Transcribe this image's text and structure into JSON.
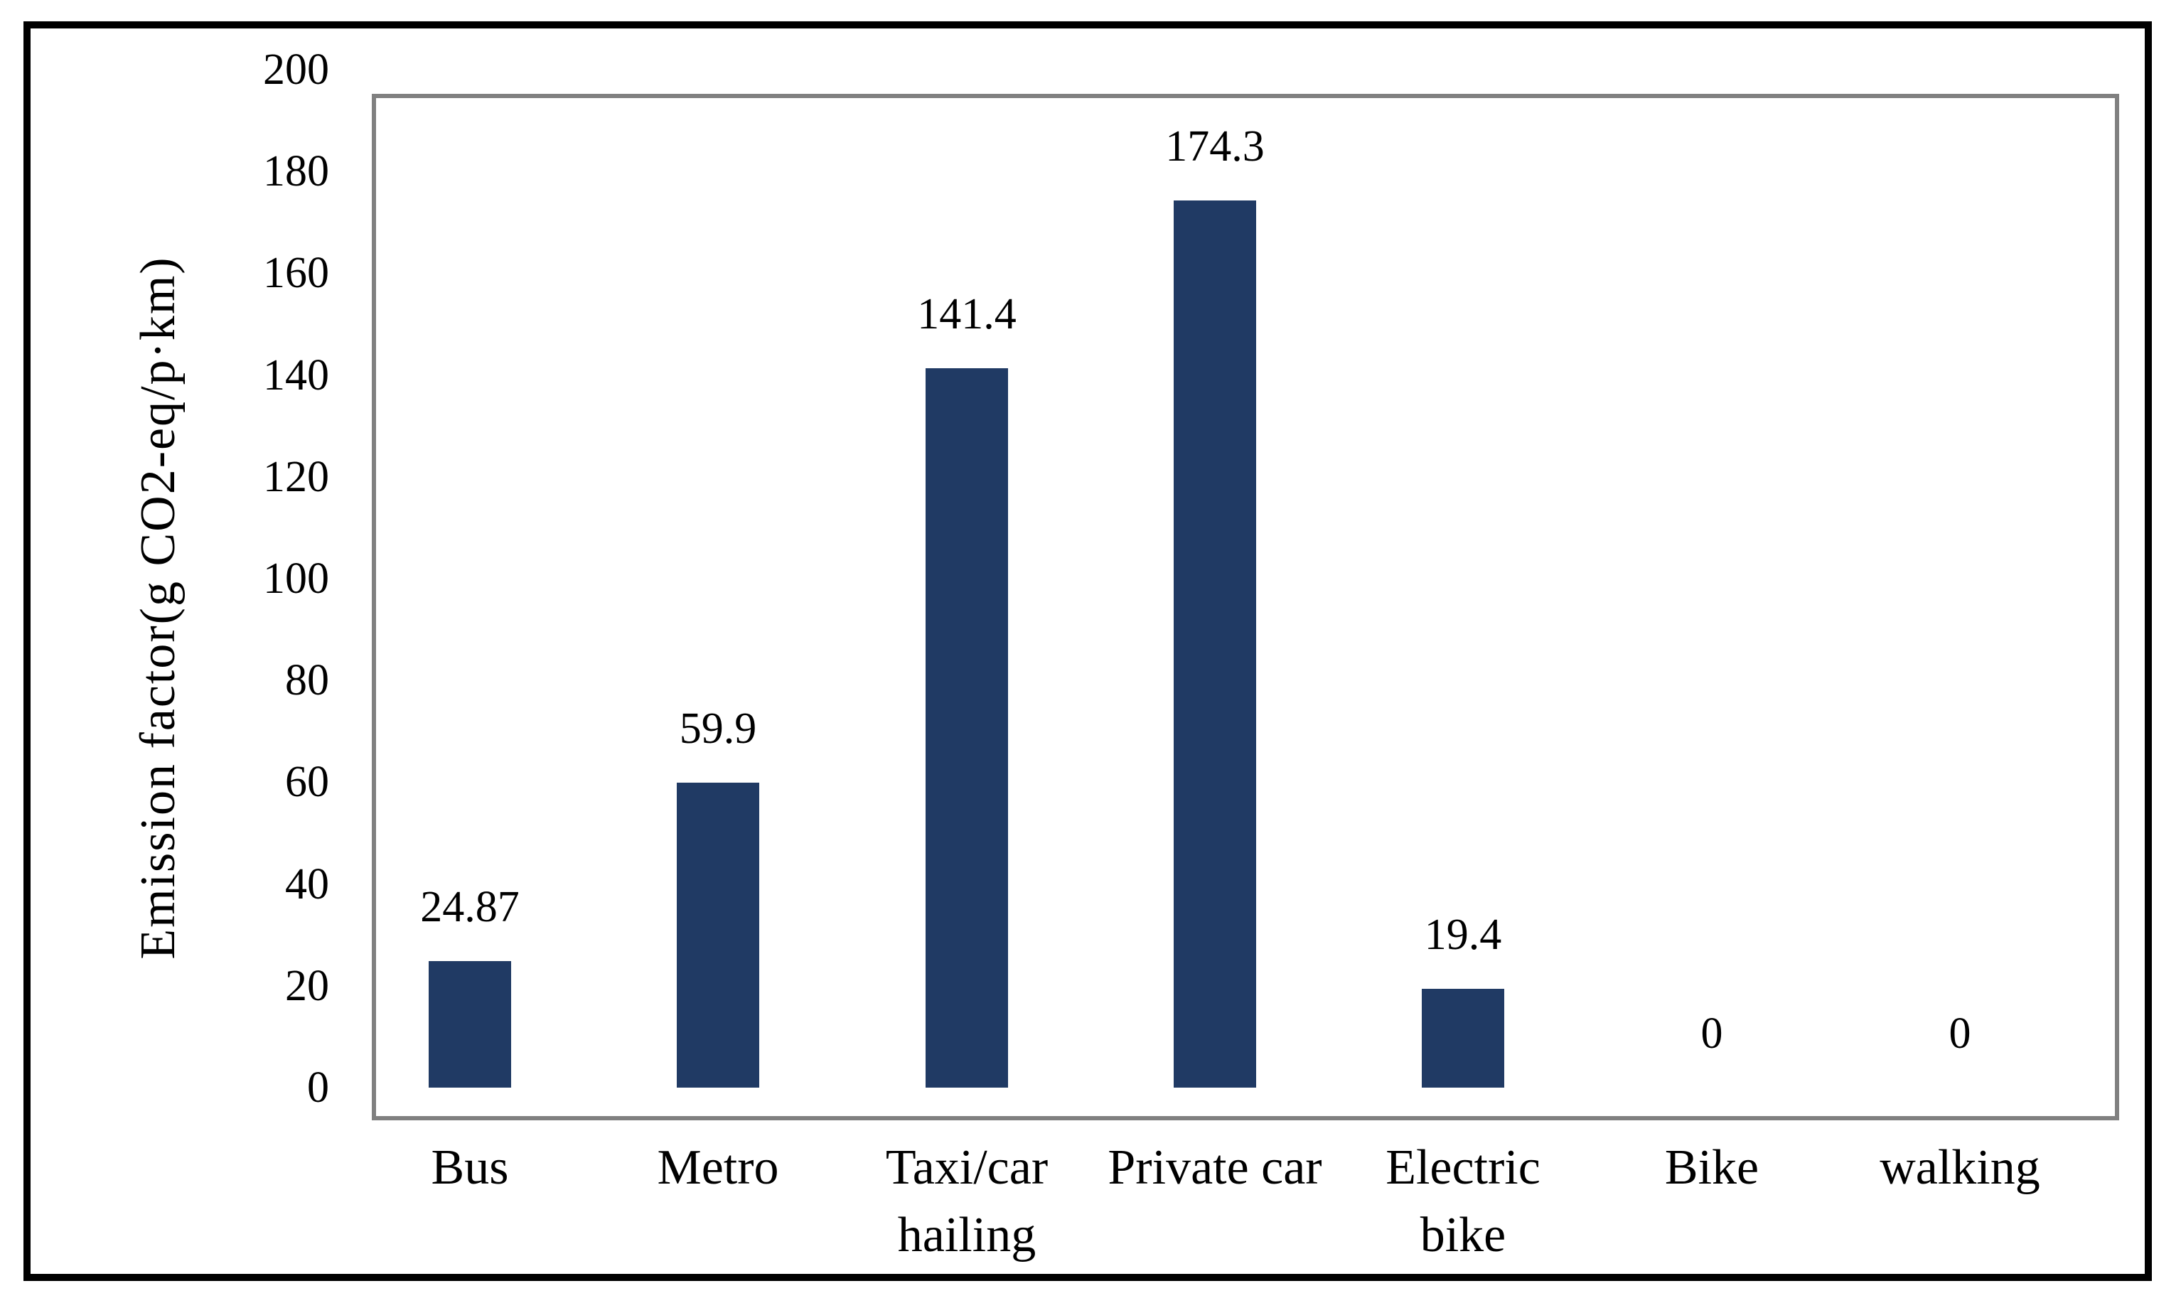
{
  "chart_data": {
    "type": "bar",
    "title": "",
    "xlabel": "",
    "ylabel": "Emission factor(g CO2-eq/p·km)",
    "categories": [
      "Bus",
      "Metro",
      "Taxi/car hailing",
      "Private car",
      "Electric bike",
      "Bike",
      "walking"
    ],
    "category_lines": [
      [
        "Bus"
      ],
      [
        "Metro"
      ],
      [
        "Taxi/car",
        "hailing"
      ],
      [
        "Private car"
      ],
      [
        "Electric",
        "bike"
      ],
      [
        "Bike"
      ],
      [
        "walking"
      ]
    ],
    "values": [
      24.87,
      59.9,
      141.4,
      174.3,
      19.4,
      0,
      0
    ],
    "value_labels": [
      "24.87",
      "59.9",
      "141.4",
      "174.3",
      "19.4",
      "0",
      "0"
    ],
    "ylim": [
      0,
      200
    ],
    "yticks": [
      0,
      20,
      40,
      60,
      80,
      100,
      120,
      140,
      160,
      180,
      200
    ],
    "grid": false,
    "legend": null,
    "bar_color": "#203A64",
    "axis_frame_color": "#808080",
    "outer_frame_color": "#000000",
    "text_color": "#000000"
  }
}
